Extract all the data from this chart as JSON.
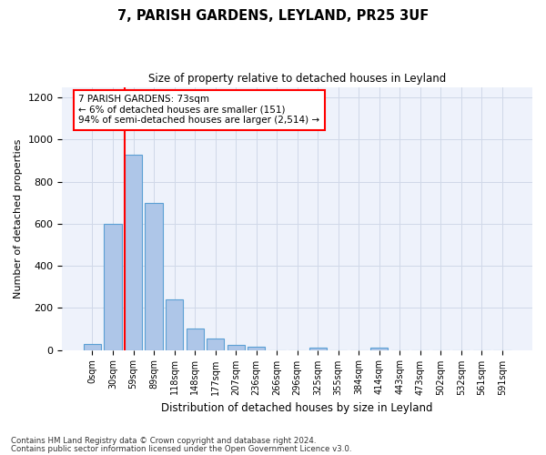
{
  "title1": "7, PARISH GARDENS, LEYLAND, PR25 3UF",
  "title2": "Size of property relative to detached houses in Leyland",
  "xlabel": "Distribution of detached houses by size in Leyland",
  "ylabel": "Number of detached properties",
  "categories": [
    "0sqm",
    "30sqm",
    "59sqm",
    "89sqm",
    "118sqm",
    "148sqm",
    "177sqm",
    "207sqm",
    "236sqm",
    "266sqm",
    "296sqm",
    "325sqm",
    "355sqm",
    "384sqm",
    "414sqm",
    "443sqm",
    "473sqm",
    "502sqm",
    "532sqm",
    "561sqm",
    "591sqm"
  ],
  "values": [
    30,
    600,
    930,
    700,
    240,
    100,
    55,
    25,
    15,
    0,
    0,
    10,
    0,
    0,
    10,
    0,
    0,
    0,
    0,
    0,
    0
  ],
  "bar_color": "#aec6e8",
  "bar_edge_color": "#5a9fd4",
  "vline_color": "red",
  "annotation_text": "7 PARISH GARDENS: 73sqm\n← 6% of detached houses are smaller (151)\n94% of semi-detached houses are larger (2,514) →",
  "annotation_box_color": "white",
  "annotation_box_edge": "red",
  "ylim": [
    0,
    1250
  ],
  "yticks": [
    0,
    200,
    400,
    600,
    800,
    1000,
    1200
  ],
  "grid_color": "#d0d8e8",
  "footer1": "Contains HM Land Registry data © Crown copyright and database right 2024.",
  "footer2": "Contains public sector information licensed under the Open Government Licence v3.0.",
  "bg_color": "#eef2fb"
}
